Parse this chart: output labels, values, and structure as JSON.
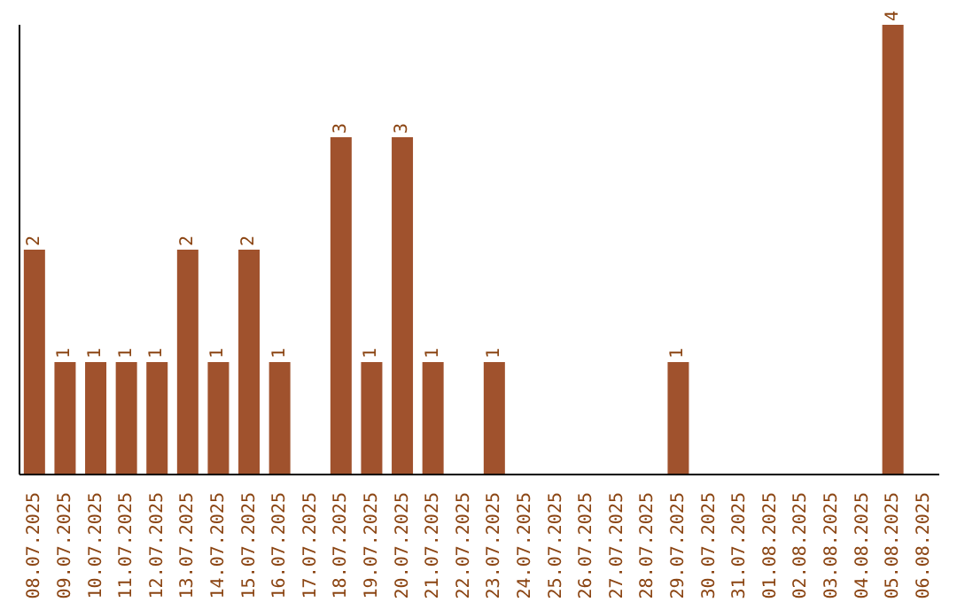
{
  "chart_data": {
    "type": "bar",
    "categories": [
      "08.07.2025",
      "09.07.2025",
      "10.07.2025",
      "11.07.2025",
      "12.07.2025",
      "13.07.2025",
      "14.07.2025",
      "15.07.2025",
      "16.07.2025",
      "17.07.2025",
      "18.07.2025",
      "19.07.2025",
      "20.07.2025",
      "21.07.2025",
      "22.07.2025",
      "23.07.2025",
      "24.07.2025",
      "25.07.2025",
      "26.07.2025",
      "27.07.2025",
      "28.07.2025",
      "29.07.2025",
      "30.07.2025",
      "31.07.2025",
      "01.08.2025",
      "02.08.2025",
      "03.08.2025",
      "04.08.2025",
      "05.08.2025",
      "06.08.2025"
    ],
    "values": [
      2,
      1,
      1,
      1,
      1,
      2,
      1,
      2,
      1,
      0,
      3,
      1,
      3,
      1,
      0,
      1,
      0,
      0,
      0,
      0,
      0,
      1,
      0,
      0,
      0,
      0,
      0,
      0,
      4,
      0
    ],
    "value_labels": [
      "2",
      "1",
      "1",
      "1",
      "1",
      "2",
      "1",
      "2",
      "1",
      null,
      "3",
      "1",
      "3",
      "1",
      null,
      "1",
      null,
      null,
      null,
      null,
      null,
      "1",
      null,
      null,
      null,
      null,
      null,
      null,
      "4",
      null
    ],
    "color": "#a0522d",
    "tick_labels": "x"
  }
}
